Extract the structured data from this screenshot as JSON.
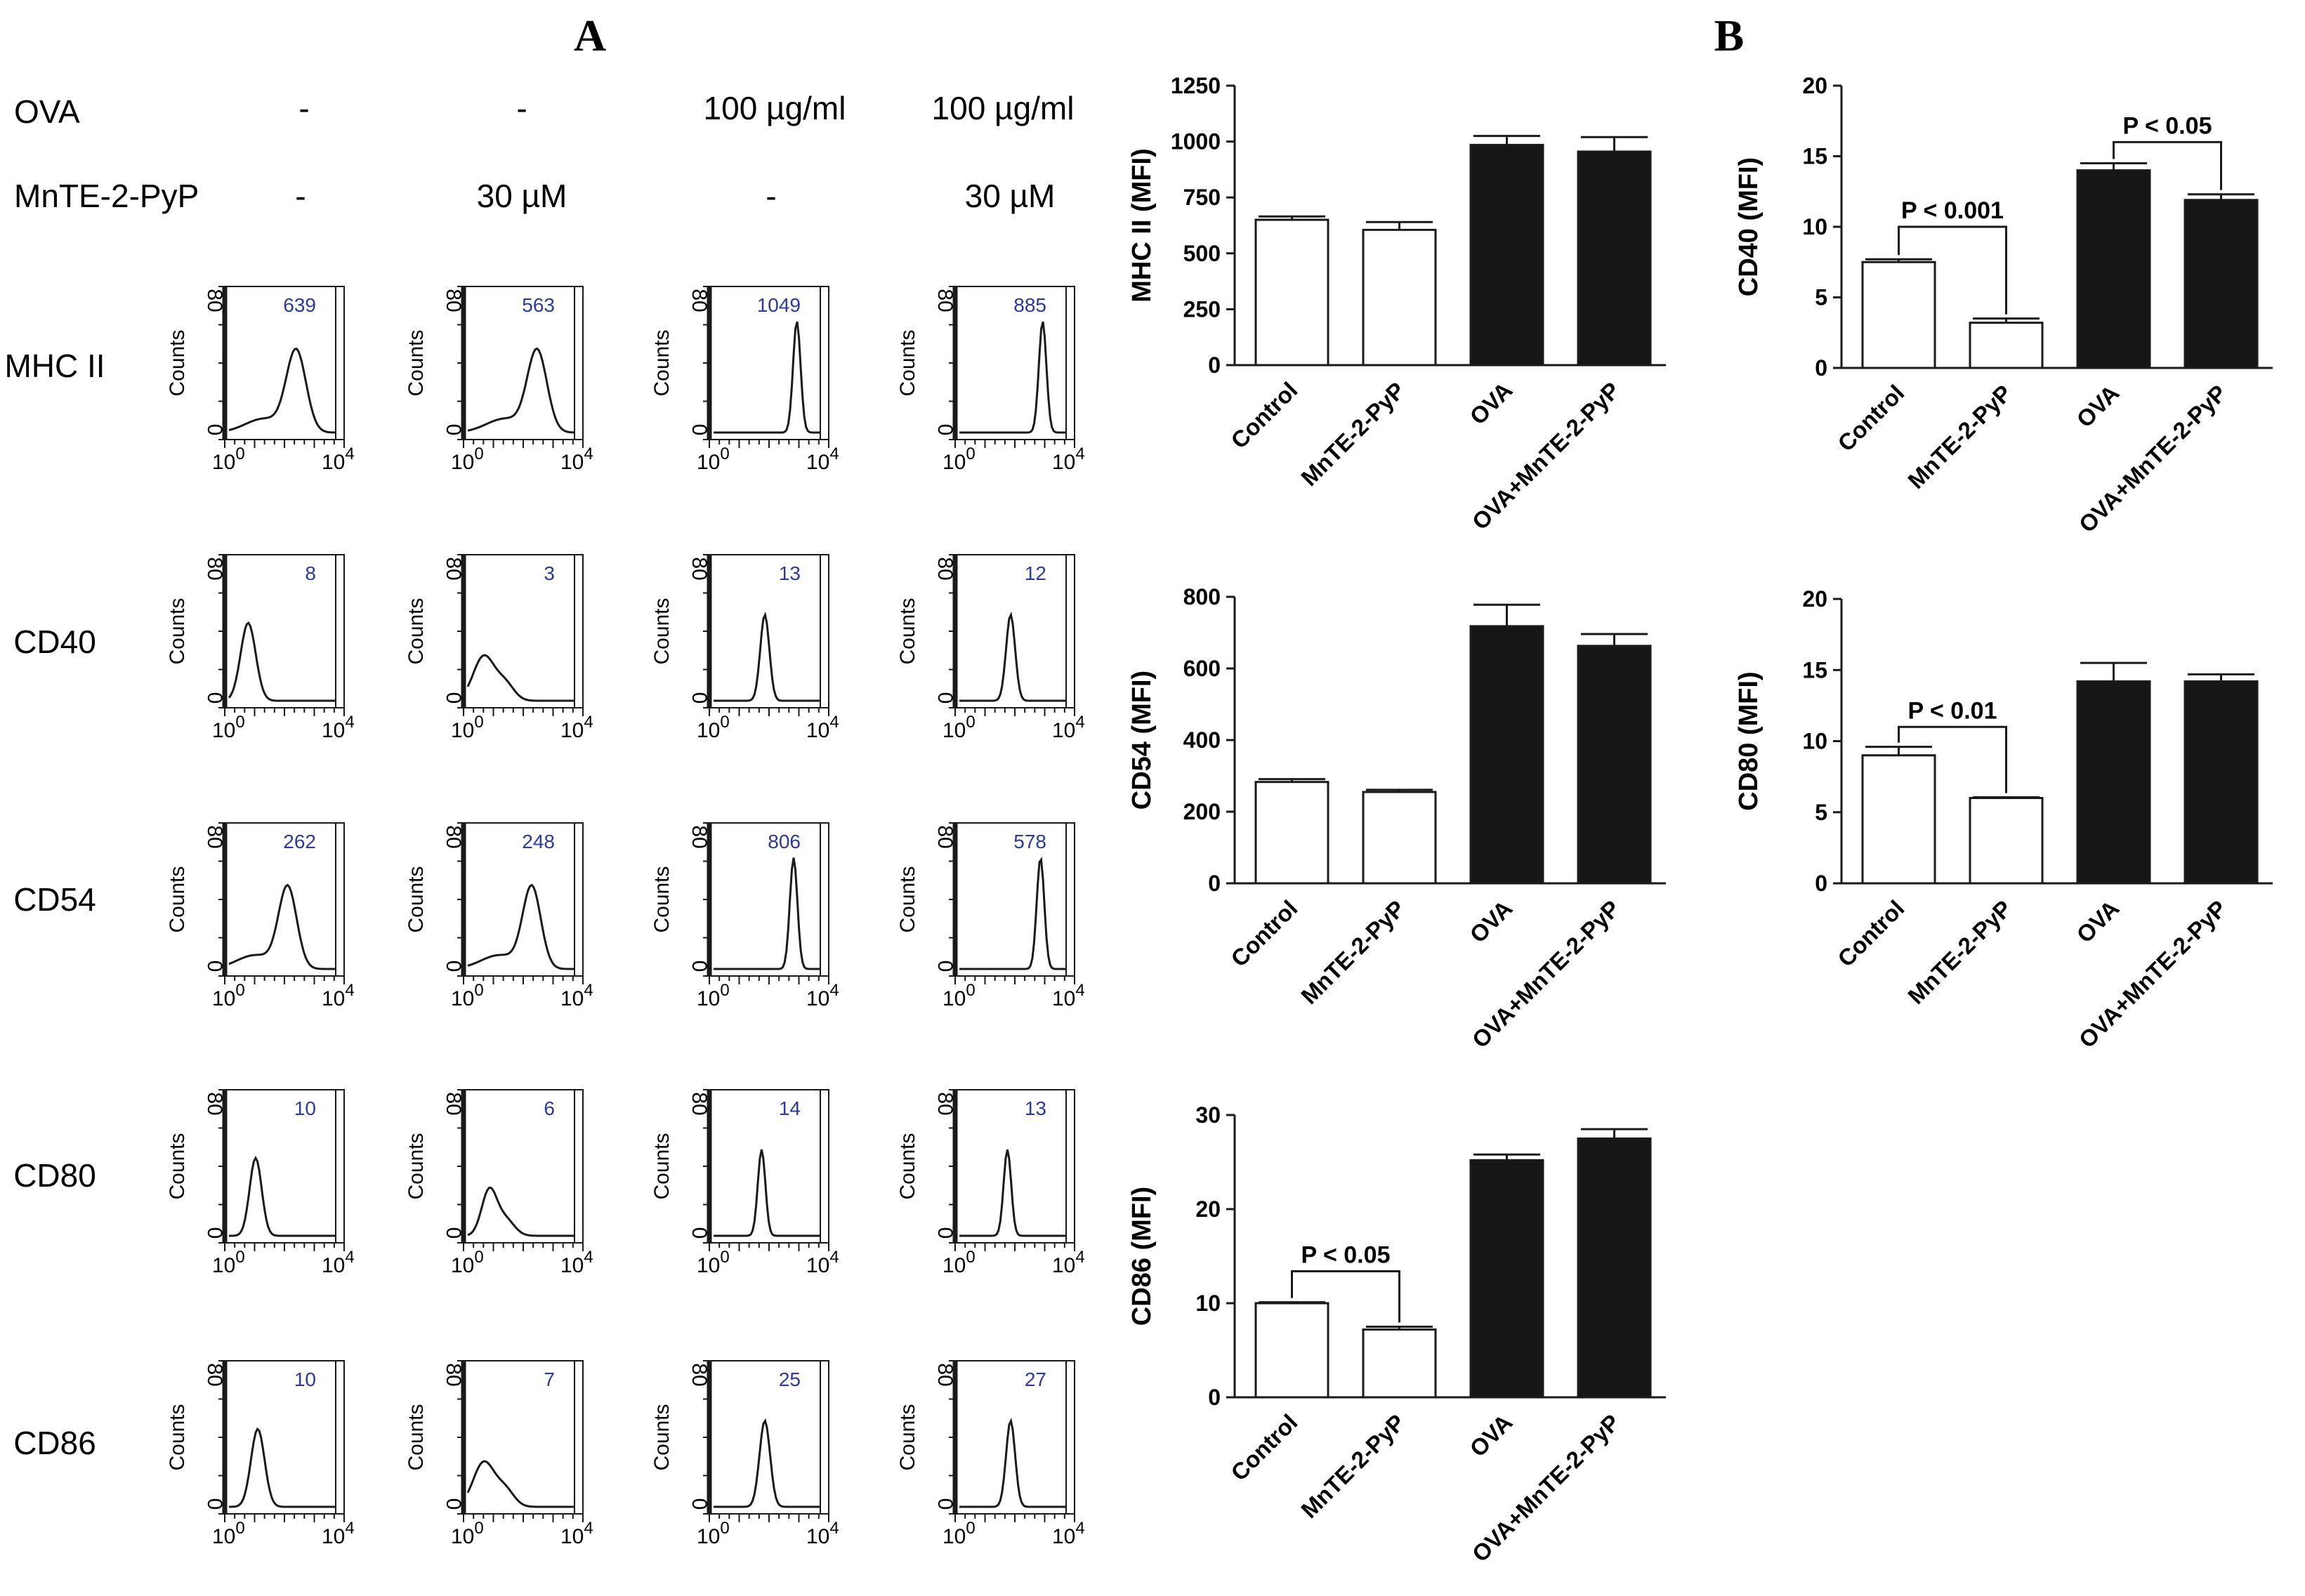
{
  "panel_labels": {
    "a": "A",
    "b": "B"
  },
  "conditions": {
    "ova_label": "OVA",
    "mn_label": "MnTE-2-PyP",
    "ova_values": [
      "-",
      "-",
      "100 µg/ml",
      "100 µg/ml"
    ],
    "mn_values": [
      "-",
      "30 µM",
      "-",
      "30 µM"
    ]
  },
  "histograms": {
    "y_label": "Counts",
    "y_ticks": [
      "0",
      "80"
    ],
    "x_tick_base": "10",
    "x_tick_exps": [
      "0",
      "4"
    ],
    "rows": [
      {
        "label": "MHC II",
        "values": [
          "639",
          "563",
          "1049",
          "885"
        ]
      },
      {
        "label": "CD40",
        "values": [
          "8",
          "3",
          "13",
          "12"
        ]
      },
      {
        "label": "CD54",
        "values": [
          "262",
          "248",
          "806",
          "578"
        ]
      },
      {
        "label": "CD80",
        "values": [
          "10",
          "6",
          "14",
          "13"
        ]
      },
      {
        "label": "CD86",
        "values": [
          "10",
          "7",
          "25",
          "27"
        ]
      }
    ]
  },
  "colors": {
    "control_bar": "#ffffff",
    "ova_bar": "#161616",
    "line": "#1a1a1a",
    "hist_number": "#2b3a9e"
  },
  "chart_data": [
    {
      "type": "bar",
      "ylabel": "MHC II (MFI)",
      "categories": [
        "Control",
        "MnTE-2-PyP",
        "OVA",
        "OVA+MnTE-2-PyP"
      ],
      "values": [
        650,
        605,
        985,
        955
      ],
      "errors": [
        15,
        35,
        40,
        65
      ],
      "fills": [
        "white",
        "white",
        "black",
        "black"
      ],
      "ylim": [
        0,
        1250
      ],
      "yticks": [
        "0",
        "250",
        "500",
        "750",
        "1000",
        "1250"
      ],
      "annotations": []
    },
    {
      "type": "bar",
      "ylabel": "CD54 (MFI)",
      "categories": [
        "Control",
        "MnTE-2-PyP",
        "OVA",
        "OVA+MnTE-2-PyP"
      ],
      "values": [
        283,
        255,
        718,
        663
      ],
      "errors": [
        8,
        6,
        60,
        33
      ],
      "fills": [
        "white",
        "white",
        "black",
        "black"
      ],
      "ylim": [
        0,
        800
      ],
      "yticks": [
        "0",
        "200",
        "400",
        "600",
        "800"
      ],
      "annotations": []
    },
    {
      "type": "bar",
      "ylabel": "CD86 (MFI)",
      "categories": [
        "Control",
        "MnTE-2-PyP",
        "OVA",
        "OVA+MnTE-2-PyP"
      ],
      "values": [
        10,
        7.2,
        25.2,
        27.5
      ],
      "errors": [
        0.1,
        0.3,
        0.6,
        1.0
      ],
      "fills": [
        "white",
        "white",
        "black",
        "black"
      ],
      "ylim": [
        0,
        30
      ],
      "yticks": [
        "0",
        "10",
        "20",
        "30"
      ],
      "annotations": [
        {
          "text": "P < 0.05",
          "from": 0,
          "to": 1,
          "y": 13.4
        }
      ]
    },
    {
      "type": "bar",
      "ylabel": "CD40 (MFI)",
      "categories": [
        "Control",
        "MnTE-2-PyP",
        "OVA",
        "OVA+MnTE-2-PyP"
      ],
      "values": [
        7.5,
        3.2,
        14.0,
        11.9
      ],
      "errors": [
        0.2,
        0.3,
        0.5,
        0.4
      ],
      "fills": [
        "white",
        "white",
        "black",
        "black"
      ],
      "ylim": [
        0,
        20
      ],
      "yticks": [
        "0",
        "5",
        "10",
        "15",
        "20"
      ],
      "annotations": [
        {
          "text": "P < 0.001",
          "from": 0,
          "to": 1,
          "y": 10.0
        },
        {
          "text": "P < 0.05",
          "from": 2,
          "to": 3,
          "y": 16.0
        }
      ]
    },
    {
      "type": "bar",
      "ylabel": "CD80 (MFI)",
      "categories": [
        "Control",
        "MnTE-2-PyP",
        "OVA",
        "OVA+MnTE-2-PyP"
      ],
      "values": [
        9.0,
        6.0,
        14.2,
        14.2
      ],
      "errors": [
        0.6,
        0.05,
        1.3,
        0.5
      ],
      "fills": [
        "white",
        "white",
        "black",
        "black"
      ],
      "ylim": [
        0,
        20
      ],
      "yticks": [
        "0",
        "5",
        "10",
        "15",
        "20"
      ],
      "annotations": [
        {
          "text": "P < 0.01",
          "from": 0,
          "to": 1,
          "y": 11.0
        }
      ]
    }
  ]
}
